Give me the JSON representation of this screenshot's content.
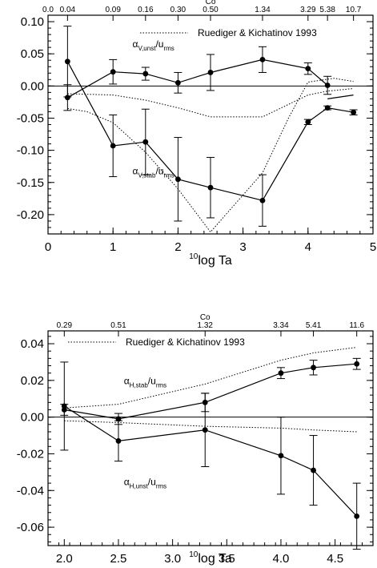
{
  "chart_data": [
    {
      "type": "line",
      "xlabel": {
        "sup": "10",
        "text": "log Ta"
      },
      "ylabel": "",
      "xlim": [
        0,
        5
      ],
      "ylim": [
        -0.23,
        0.11
      ],
      "x_ticks": [
        0,
        1,
        2,
        3,
        4,
        5
      ],
      "x_tick_labels": [
        "0",
        "1",
        "2",
        "3",
        "4",
        "5"
      ],
      "y_ticks": [
        -0.2,
        -0.15,
        -0.1,
        -0.05,
        0.0,
        0.05,
        0.1
      ],
      "y_tick_labels": [
        "-0.20",
        "-0.15",
        "-0.10",
        "-0.05",
        "0.00",
        "0.05",
        "0.10"
      ],
      "top_axis_title": "Co",
      "top_ticks": [
        {
          "x": 0.0,
          "label": "0.0"
        },
        {
          "x": 0.3,
          "label": "0.04"
        },
        {
          "x": 1.0,
          "label": "0.09"
        },
        {
          "x": 1.5,
          "label": "0.16"
        },
        {
          "x": 2.0,
          "label": "0.30"
        },
        {
          "x": 2.5,
          "label": "0.50"
        },
        {
          "x": 3.3,
          "label": "1.34"
        },
        {
          "x": 4.0,
          "label": "3.29"
        },
        {
          "x": 4.3,
          "label": "5.38"
        },
        {
          "x": 4.7,
          "label": "10.7"
        }
      ],
      "zero_line": true,
      "legend": {
        "label": "Ruediger & Kichatinov 1993",
        "position": "top-right",
        "style": "dotted"
      },
      "series": [
        {
          "x": [
            0.3,
            1.0,
            1.5,
            2.0,
            2.5,
            3.3,
            4.0,
            4.3
          ],
          "y": [
            -0.018,
            0.022,
            0.019,
            0.005,
            0.021,
            0.041,
            0.027,
            0.001
          ],
          "err": [
            0.02,
            0.019,
            0.01,
            0.016,
            0.028,
            0.02,
            0.009,
            0.014
          ],
          "style": "solid",
          "label": {
            "main": "α",
            "sub": "V,unst",
            "den_main": "u",
            "den_sub": "rms",
            "x": 1.3,
            "y": 0.06
          }
        },
        {
          "x": [
            0.3,
            1.0,
            1.5,
            2.0,
            2.5,
            3.3,
            4.0,
            4.3,
            4.7
          ],
          "y": [
            0.038,
            -0.093,
            -0.087,
            -0.145,
            -0.158,
            -0.178,
            -0.056,
            -0.034,
            -0.041
          ],
          "err": [
            0.055,
            0.048,
            0.051,
            0.065,
            0.047,
            0.04,
            0.004,
            0.003,
            0.004
          ],
          "style": "solid",
          "label": {
            "main": "α",
            "sub": "V,stab",
            "den_main": "u",
            "den_sub": "rms",
            "x": 1.3,
            "y": -0.137
          }
        },
        {
          "x": [
            0.3,
            0.6,
            1.0,
            1.5,
            2.0,
            2.5,
            3.3,
            3.7,
            4.0,
            4.4,
            4.7
          ],
          "y": [
            -0.035,
            -0.04,
            -0.057,
            -0.103,
            -0.16,
            -0.227,
            -0.135,
            -0.05,
            0.006,
            0.012,
            0.007
          ],
          "style": "dotted"
        },
        {
          "x": [
            0.3,
            1.0,
            1.5,
            2.0,
            2.5,
            3.3,
            4.0,
            4.3,
            4.7
          ],
          "y": [
            -0.012,
            -0.014,
            -0.022,
            -0.034,
            -0.048,
            -0.048,
            -0.014,
            -0.008,
            -0.004
          ],
          "style": "dotted"
        },
        {
          "x": [
            4.3,
            4.7
          ],
          "y": [
            -0.02,
            -0.014
          ],
          "style": "solid"
        }
      ]
    },
    {
      "type": "line",
      "xlabel": {
        "sup": "10",
        "text": "log Ta"
      },
      "ylabel": "",
      "xlim": [
        1.85,
        4.85
      ],
      "ylim": [
        -0.07,
        0.047
      ],
      "x_ticks": [
        2.0,
        2.5,
        3.0,
        3.5,
        4.0,
        4.5
      ],
      "x_tick_labels": [
        "2.0",
        "2.5",
        "3.0",
        "3.5",
        "4.0",
        "4.5"
      ],
      "y_ticks": [
        -0.06,
        -0.04,
        -0.02,
        0.0,
        0.02,
        0.04
      ],
      "y_tick_labels": [
        "-0.06",
        "-0.04",
        "-0.02",
        "0.00",
        "0.02",
        "0.04"
      ],
      "top_axis_title": "Co",
      "top_ticks": [
        {
          "x": 2.0,
          "label": "0.29"
        },
        {
          "x": 2.5,
          "label": "0.51"
        },
        {
          "x": 3.3,
          "label": "1.32"
        },
        {
          "x": 4.0,
          "label": "3.34"
        },
        {
          "x": 4.3,
          "label": "5.41"
        },
        {
          "x": 4.7,
          "label": "11.6"
        }
      ],
      "zero_line": true,
      "legend": {
        "label": "Ruediger & Kichatinov 1993",
        "position": "top-left",
        "style": "dotted"
      },
      "series": [
        {
          "x": [
            2.0,
            2.5,
            3.3,
            4.0,
            4.3,
            4.7
          ],
          "y": [
            0.004,
            -0.001,
            0.008,
            0.024,
            0.027,
            0.029
          ],
          "err": [
            0.003,
            0.003,
            0.005,
            0.003,
            0.004,
            0.003
          ],
          "style": "solid",
          "label": {
            "main": "α",
            "sub": "H,stab",
            "den_main": "u",
            "den_sub": "rms",
            "x": 2.55,
            "y": 0.018
          }
        },
        {
          "x": [
            2.0,
            2.5,
            3.3,
            4.0,
            4.3,
            4.7
          ],
          "y": [
            0.006,
            -0.013,
            -0.007,
            -0.021,
            -0.029,
            -0.054
          ],
          "err": [
            0.024,
            0.011,
            0.02,
            0.021,
            0.019,
            0.018
          ],
          "style": "solid",
          "label": {
            "main": "α",
            "sub": "H,unst",
            "den_main": "u",
            "den_sub": "rms",
            "x": 2.55,
            "y": -0.037
          }
        },
        {
          "x": [
            2.0,
            2.5,
            3.3,
            4.0,
            4.3,
            4.7
          ],
          "y": [
            0.005,
            0.007,
            0.018,
            0.031,
            0.035,
            0.038
          ],
          "style": "dotted"
        },
        {
          "x": [
            2.0,
            2.5,
            3.3,
            4.0,
            4.3,
            4.7
          ],
          "y": [
            -0.002,
            -0.003,
            -0.005,
            -0.006,
            -0.007,
            -0.008
          ],
          "style": "dotted"
        }
      ]
    }
  ]
}
